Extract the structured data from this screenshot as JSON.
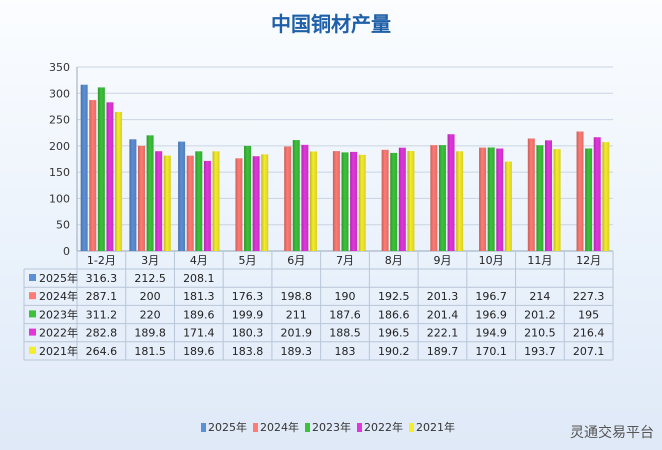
{
  "title": "中国铜材产量",
  "watermark": "灵通交易平台",
  "chart_data": {
    "type": "bar",
    "title": "中国铜材产量",
    "categories": [
      "1-2月",
      "3月",
      "4月",
      "5月",
      "6月",
      "7月",
      "8月",
      "9月",
      "10月",
      "11月",
      "12月"
    ],
    "ylim": [
      0,
      350
    ],
    "yticks": [
      0,
      50,
      100,
      150,
      200,
      250,
      300,
      350
    ],
    "grid": true,
    "legend_position": "bottom",
    "series": [
      {
        "name": "2025年",
        "color": "#5b8fd6",
        "values": [
          316.3,
          212.5,
          208.1,
          null,
          null,
          null,
          null,
          null,
          null,
          null,
          null
        ],
        "labels": [
          "316.3",
          "212.5",
          "208.1",
          "",
          "",
          "",
          "",
          "",
          "",
          "",
          ""
        ]
      },
      {
        "name": "2024年",
        "color": "#ff7b74",
        "values": [
          287.1,
          200,
          181.3,
          176.3,
          198.8,
          190,
          192.5,
          201.3,
          196.7,
          214,
          227.3
        ],
        "labels": [
          "287.1",
          "200",
          "181.3",
          "176.3",
          "198.8",
          "190",
          "192.5",
          "201.3",
          "196.7",
          "214",
          "227.3"
        ]
      },
      {
        "name": "2023年",
        "color": "#3cc23a",
        "values": [
          311.2,
          220,
          189.6,
          199.9,
          211,
          187.6,
          186.6,
          201.4,
          196.9,
          201.2,
          195
        ],
        "labels": [
          "311.2",
          "220",
          "189.6",
          "199.9",
          "211",
          "187.6",
          "186.6",
          "201.4",
          "196.9",
          "201.2",
          "195"
        ]
      },
      {
        "name": "2022年",
        "color": "#e236dc",
        "values": [
          282.8,
          189.8,
          171.4,
          180.3,
          201.9,
          188.5,
          196.5,
          222.1,
          194.9,
          210.5,
          216.4
        ],
        "labels": [
          "282.8",
          "189.8",
          "171.4",
          "180.3",
          "201.9",
          "188.5",
          "196.5",
          "222.1",
          "194.9",
          "210.5",
          "216.4"
        ]
      },
      {
        "name": "2021年",
        "color": "#f5ec2a",
        "values": [
          264.6,
          181.5,
          189.6,
          183.8,
          189.3,
          183,
          190.2,
          189.7,
          170.1,
          193.7,
          207.1
        ],
        "labels": [
          "264.6",
          "181.5",
          "189.6",
          "183.8",
          "189.3",
          "183",
          "190.2",
          "189.7",
          "170.1",
          "193.7",
          "207.1"
        ]
      }
    ]
  }
}
